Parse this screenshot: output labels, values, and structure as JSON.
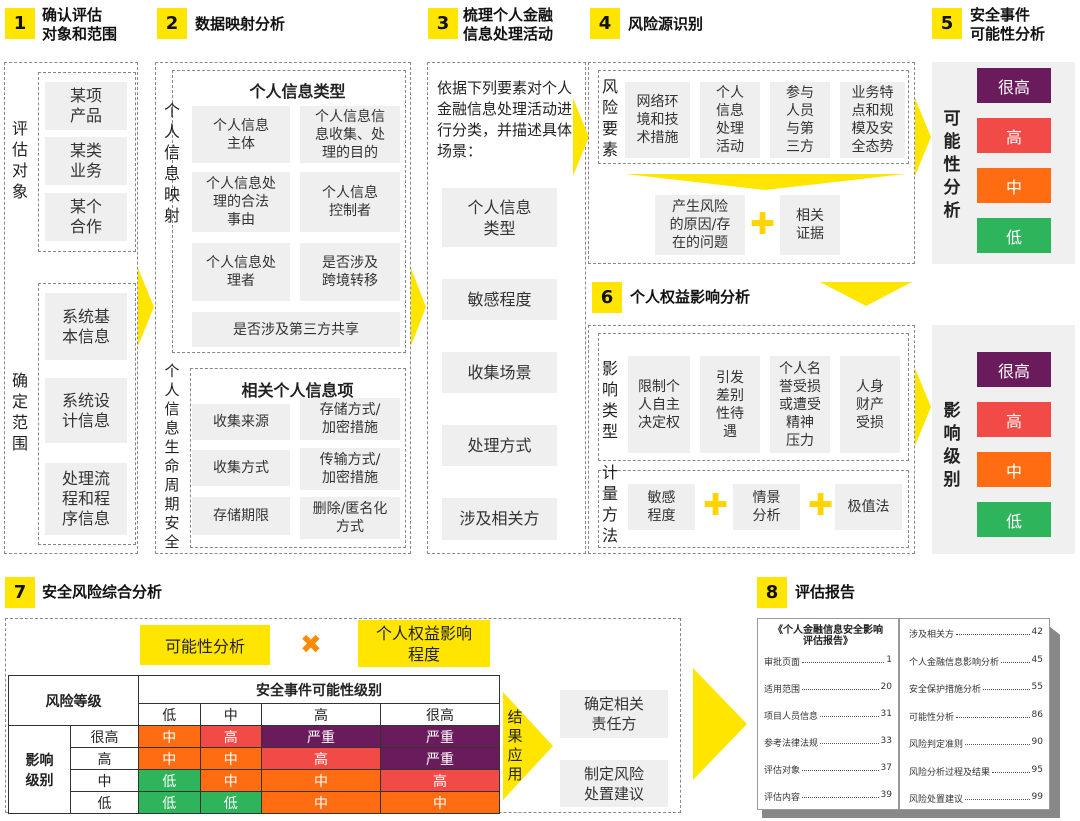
{
  "colors": {
    "accent": "#ffe500",
    "very_high": "#6a1b5c",
    "high": "#f24a46",
    "medium": "#ff6c12",
    "low": "#2eb55b",
    "severe": "#6a1b5c"
  },
  "steps": [
    {
      "num": "1",
      "title": "确认评估\n对象和范围"
    },
    {
      "num": "2",
      "title": "数据映射分析"
    },
    {
      "num": "3",
      "title": "梳理个人金融\n信息处理活动"
    },
    {
      "num": "4",
      "title": "风险源识别"
    },
    {
      "num": "5",
      "title": "安全事件\n可能性分析"
    },
    {
      "num": "6",
      "title": "个人权益影响分析"
    },
    {
      "num": "7",
      "title": "安全风险综合分析"
    },
    {
      "num": "8",
      "title": "评估报告"
    }
  ],
  "step1": {
    "object_label": "评估对象",
    "objects": [
      "某项\n产品",
      "某类\n业务",
      "某个\n合作"
    ],
    "scope_label": "确定范围",
    "scopes": [
      "系统基\n本信息",
      "系统设\n计信息",
      "处理流\n程和程\n序信息"
    ]
  },
  "step2": {
    "mapping_label": "个人信息映射",
    "types_title": "个人信息类型",
    "types": [
      "个人信息\n主体",
      "个人信息信\n息收集、处\n理的目的",
      "个人信息处\n理的合法\n事由",
      "个人信息\n控制者",
      "个人信息处\n理者",
      "是否涉及\n跨境转移",
      "是否涉及第三方共享"
    ],
    "lifecycle_label": "个人信息生命周期安全",
    "items_title": "相关个人信息项",
    "items": [
      "收集来源",
      "存储方式/\n加密措施",
      "收集方式",
      "传输方式/\n加密措施",
      "存储期限",
      "删除/匿名化\n方式"
    ]
  },
  "step3": {
    "intro": "依据下列要素对个人金融信息处理活动进行分类，并描述具体场景：",
    "elements": [
      "个人信息\n类型",
      "敏感程度",
      "收集场景",
      "处理方式",
      "涉及相关方"
    ]
  },
  "step4": {
    "label": "风险要素",
    "factors": [
      "网络环\n境和技\n术措施",
      "个人\n信息\n处理\n活动",
      "参与\n人员\n与第\n三方",
      "业务特\n点和规\n模及安\n全态势"
    ],
    "outputs": [
      "产生风险\n的原因/存\n在的问题",
      "相关\n证据"
    ],
    "plus": "✚"
  },
  "step5": {
    "label": "可能性分析",
    "levels": [
      "很高",
      "高",
      "中",
      "低"
    ]
  },
  "step6": {
    "type_label": "影响类型",
    "types": [
      "限制个\n人自主\n决定权",
      "引发\n差别\n性待\n遇",
      "个人名\n誉受损\n或遭受\n精神\n压力",
      "人身\n财产\n受损"
    ],
    "method_label": "计量方法",
    "methods": [
      "敏感\n程度",
      "情景\n分析",
      "极值法"
    ]
  },
  "impact": {
    "label": "影响级别",
    "levels": [
      "很高",
      "高",
      "中",
      "低"
    ]
  },
  "step7": {
    "likelihood_box": "可能性分析",
    "times": "✖",
    "impact_box": "个人权益影响\n程度",
    "table": {
      "corner": "风险等级",
      "col_group": "安全事件可能性级别",
      "cols": [
        "低",
        "中",
        "高",
        "很高"
      ],
      "row_group": "影响\n级别",
      "rows": [
        {
          "label": "很高",
          "cells": [
            "中",
            "高",
            "严重",
            "严重"
          ]
        },
        {
          "label": "高",
          "cells": [
            "中",
            "中",
            "高",
            "严重"
          ]
        },
        {
          "label": "中",
          "cells": [
            "低",
            "中",
            "中",
            "高"
          ]
        },
        {
          "label": "低",
          "cells": [
            "低",
            "低",
            "中",
            "中"
          ]
        }
      ]
    },
    "result_label": "结果应用",
    "results": [
      "确定相关\n责任方",
      "制定风险\n处置建议"
    ]
  },
  "step8": {
    "report_title": "《个人金融信息安全影响\n评估报告》",
    "left": [
      [
        "审批页面",
        "1"
      ],
      [
        "适用范围",
        "20"
      ],
      [
        "项目人员信息",
        "31"
      ],
      [
        "参考法律法规",
        "33"
      ],
      [
        "评估对象",
        "37"
      ],
      [
        "评估内容",
        "39"
      ]
    ],
    "right": [
      [
        "涉及相关方",
        "42"
      ],
      [
        "个人金融信息影响分析",
        "45"
      ],
      [
        "安全保护措施分析",
        "55"
      ],
      [
        "可能性分析",
        "86"
      ],
      [
        "风险判定准则",
        "90"
      ],
      [
        "风险分析过程及结果",
        "95"
      ],
      [
        "风险处置建议",
        "99"
      ]
    ]
  }
}
